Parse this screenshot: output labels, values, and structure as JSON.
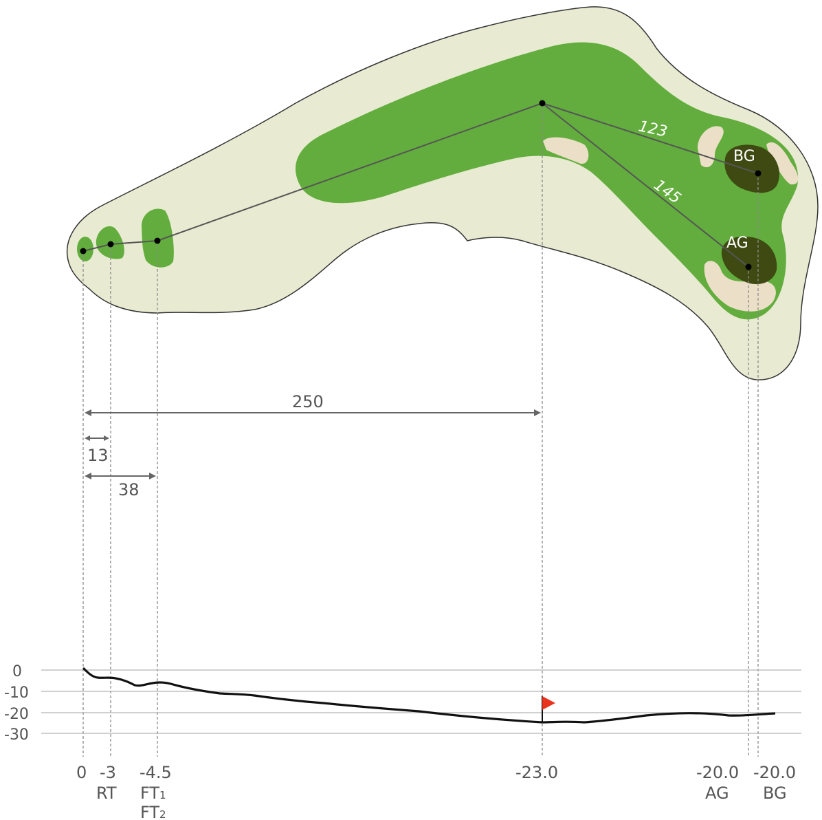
{
  "colors": {
    "rough": "#e8ebd2",
    "fairway": "#62ad3d",
    "tee": "#62ad3d",
    "green": "#3e4a12",
    "bunker": "#ecdfc8",
    "outline": "#333333",
    "guide": "#8a8a8a",
    "profile_line": "#111111",
    "flag": "#e8331f",
    "text": "#555555"
  },
  "hole_labels": {
    "front_green": "AG",
    "back_green": "BG",
    "to_back_green": "123",
    "to_front_green": "145"
  },
  "measurements": {
    "to_landing": "250",
    "to_red_tee": "13",
    "to_front_tees": "38"
  },
  "profile": {
    "y_ticks": [
      "0",
      "-10",
      "-20",
      "-30"
    ],
    "stations": [
      {
        "value": "0",
        "label": ""
      },
      {
        "value": "-3",
        "label": "RT"
      },
      {
        "value": "-4.5",
        "label": "FT",
        "label_sub": "1",
        "label2": "FT",
        "label2_sub": "2"
      },
      {
        "value": "-23.0",
        "label": ""
      },
      {
        "value": "-20.0",
        "label": "AG"
      },
      {
        "value": "-20.0",
        "label": "BG"
      }
    ],
    "elevation_range": [
      -30,
      0
    ]
  }
}
